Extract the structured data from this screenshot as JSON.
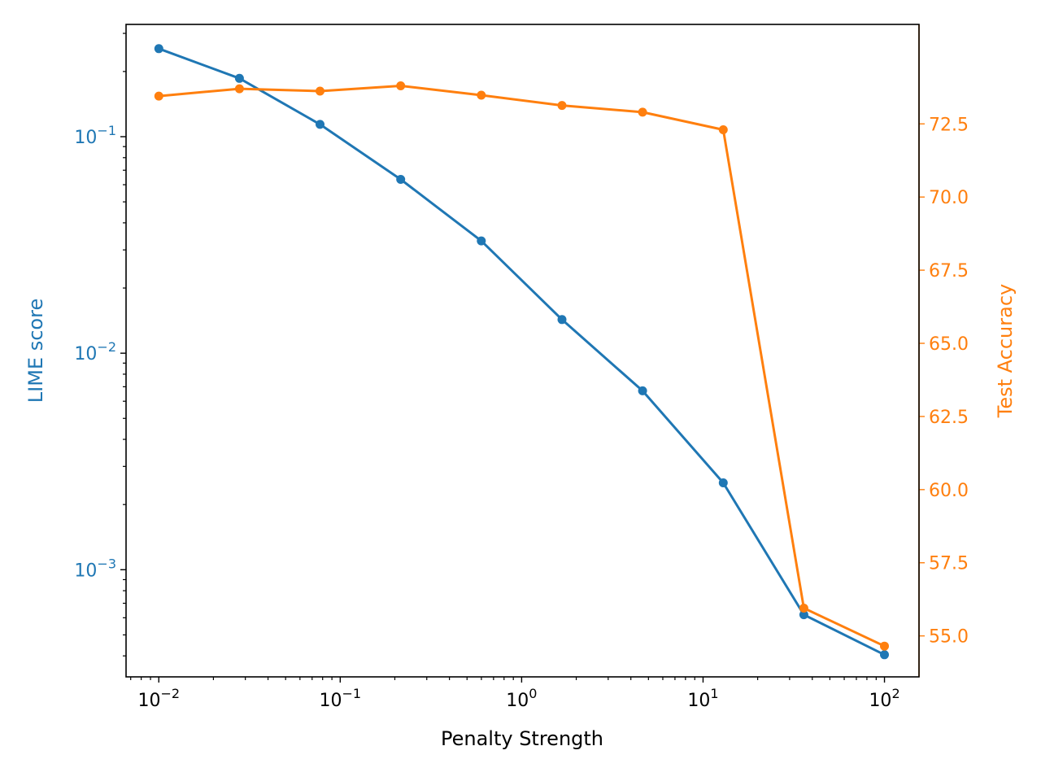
{
  "chart_data": {
    "type": "line",
    "xlabel": "Penalty Strength",
    "x_scale": "log",
    "xlim": [
      0.0066,
      155
    ],
    "x_ticks": [
      {
        "value": 0.01,
        "base": "10",
        "exp": "−2"
      },
      {
        "value": 0.1,
        "base": "10",
        "exp": "−1"
      },
      {
        "value": 1,
        "base": "10",
        "exp": "0"
      },
      {
        "value": 10,
        "base": "10",
        "exp": "1"
      },
      {
        "value": 100,
        "base": "10",
        "exp": "2"
      }
    ],
    "x": [
      0.01,
      0.02783,
      0.07743,
      0.2154,
      0.5995,
      1.668,
      4.642,
      12.92,
      35.94,
      100
    ],
    "left_axis": {
      "label": "LIME score",
      "scale": "log",
      "ylim": [
        0.00032,
        0.33
      ],
      "color": "#1f77b4",
      "ticks": [
        {
          "value": 0.1,
          "base": "10",
          "exp": "−1"
        },
        {
          "value": 0.01,
          "base": "10",
          "exp": "−2"
        },
        {
          "value": 0.001,
          "base": "10",
          "exp": "−3"
        }
      ]
    },
    "right_axis": {
      "label": "Test Accuracy",
      "scale": "linear",
      "ylim": [
        53.6,
        75.9
      ],
      "color": "#ff7f0e",
      "ticks": [
        "55.0",
        "57.5",
        "60.0",
        "62.5",
        "65.0",
        "67.5",
        "70.0",
        "72.5"
      ]
    },
    "series": [
      {
        "axis": "left",
        "color": "#1f77b4",
        "values": [
          0.255,
          0.186,
          0.114,
          0.0635,
          0.033,
          0.0143,
          0.0067,
          0.00252,
          0.00062,
          0.000405
        ]
      },
      {
        "axis": "right",
        "color": "#ff7f0e",
        "values": [
          73.45,
          73.7,
          73.62,
          73.8,
          73.48,
          73.13,
          72.9,
          72.3,
          55.95,
          54.65
        ]
      }
    ],
    "grid": false,
    "legend": "none"
  }
}
